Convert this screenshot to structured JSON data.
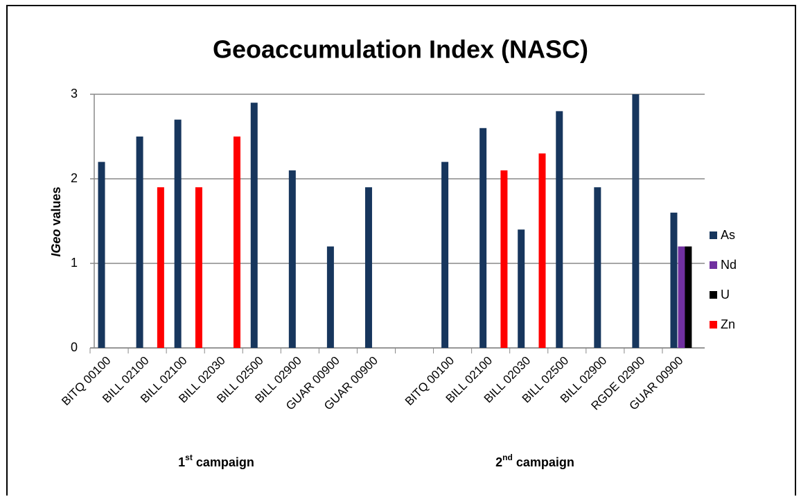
{
  "chart_data": {
    "type": "bar",
    "title": "Geoaccumulation Index (NASC)",
    "y_label": {
      "italic": "IGeo",
      "rest": "values"
    },
    "categories": [
      "BITQ 00100",
      "BILL 02100",
      "BILL 02100",
      "BILL 02030",
      "BILL 02500",
      "BILL 02900",
      "GUAR 00900",
      "GUAR 00900",
      null,
      "BITQ 00100",
      "BILL 02100",
      "BILL 02030",
      "BILL 02500",
      "BILL 02900",
      "RGDE 02900",
      "GUAR 00900"
    ],
    "series": [
      {
        "name": "As",
        "color": "#17365d",
        "values": [
          2.2,
          2.5,
          2.7,
          null,
          2.9,
          2.1,
          1.2,
          1.9,
          null,
          2.2,
          2.6,
          1.4,
          2.8,
          1.9,
          3.0,
          1.6
        ]
      },
      {
        "name": "Nd",
        "color": "#7030a0",
        "values": [
          null,
          null,
          null,
          null,
          null,
          null,
          null,
          null,
          null,
          null,
          null,
          null,
          null,
          null,
          null,
          1.2
        ]
      },
      {
        "name": "U",
        "color": "#000000",
        "values": [
          null,
          null,
          null,
          null,
          null,
          null,
          null,
          null,
          null,
          null,
          null,
          null,
          null,
          null,
          null,
          1.2
        ]
      },
      {
        "name": "Zn",
        "color": "#ff0000",
        "values": [
          null,
          1.9,
          1.9,
          2.5,
          null,
          null,
          null,
          null,
          null,
          null,
          2.1,
          2.3,
          null,
          null,
          null,
          null
        ]
      }
    ],
    "groups": [
      {
        "number": "1",
        "suffix": "st",
        "text": "campaign"
      },
      {
        "number": "2",
        "suffix": "nd",
        "text": "campaign"
      }
    ],
    "ylim": [
      0,
      3
    ],
    "yticks": [
      0,
      1,
      2,
      3
    ],
    "grid": true,
    "legend": "right"
  }
}
